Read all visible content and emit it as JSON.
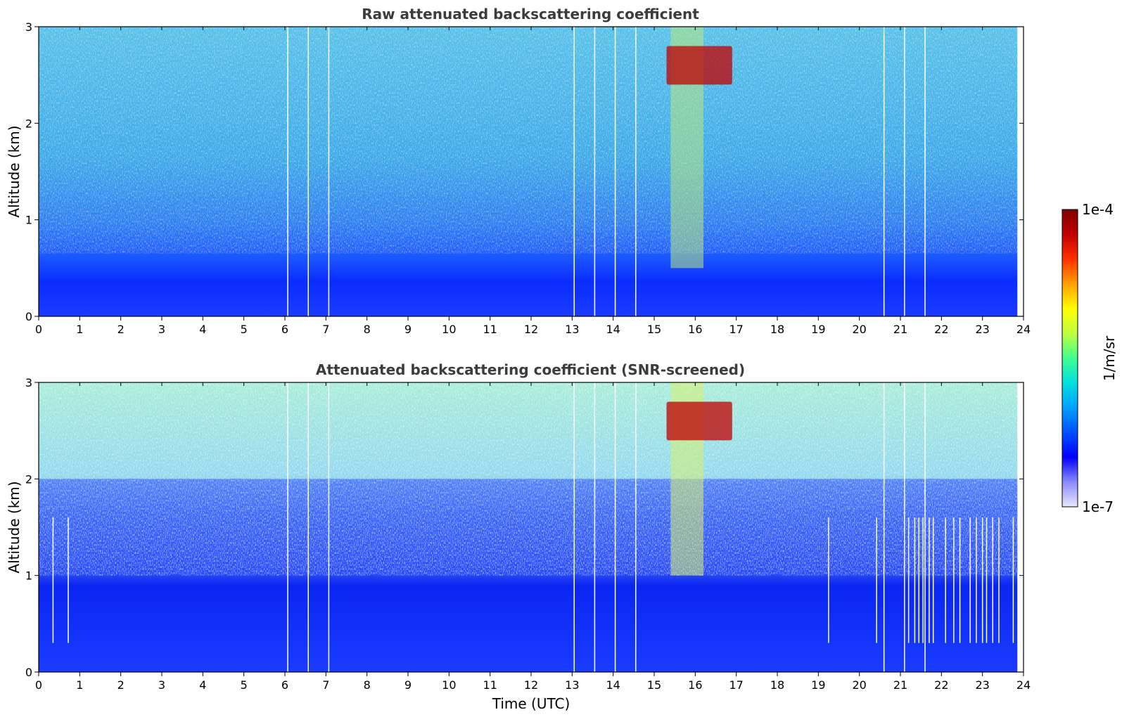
{
  "chart_data": [
    {
      "type": "heatmap",
      "title": "Raw attenuated backscattering coefficient",
      "xlabel": "",
      "ylabel": "Altitude (km)",
      "xlim": [
        0,
        24
      ],
      "ylim": [
        0,
        3
      ],
      "x_ticks": [
        "0",
        "1",
        "2",
        "3",
        "4",
        "5",
        "6",
        "7",
        "8",
        "9",
        "10",
        "11",
        "12",
        "13",
        "14",
        "15",
        "16",
        "17",
        "18",
        "19",
        "20",
        "21",
        "22",
        "23",
        "24"
      ],
      "y_ticks": [
        "0",
        "1",
        "2",
        "3"
      ],
      "data_end_time": 23.85,
      "gap_times": [
        6.07,
        6.57,
        7.07,
        13.05,
        13.55,
        14.05,
        14.55,
        20.6,
        21.1,
        21.6
      ],
      "features": {
        "boundary_layer_top_km": 0.65,
        "noise_fade_start_km": 0.4,
        "cloud": {
          "time_start": 15.3,
          "time_end": 16.9,
          "alt_bottom_km": 2.4,
          "alt_top_km": 2.8
        },
        "plume": {
          "time_start": 15.4,
          "time_end": 16.2,
          "alt_bottom_km": 0.5,
          "alt_top_km": 3.0
        }
      }
    },
    {
      "type": "heatmap",
      "title": "Attenuated backscattering coefficient (SNR-screened)",
      "xlabel": "Time (UTC)",
      "ylabel": "Altitude (km)",
      "xlim": [
        0,
        24
      ],
      "ylim": [
        0,
        3
      ],
      "x_ticks": [
        "0",
        "1",
        "2",
        "3",
        "4",
        "5",
        "6",
        "7",
        "8",
        "9",
        "10",
        "11",
        "12",
        "13",
        "14",
        "15",
        "16",
        "17",
        "18",
        "19",
        "20",
        "21",
        "22",
        "23",
        "24"
      ],
      "y_ticks": [
        "0",
        "1",
        "2",
        "3"
      ],
      "data_end_time": 23.85,
      "gap_times": [
        6.07,
        6.57,
        7.07,
        13.05,
        13.55,
        14.05,
        14.55,
        20.6,
        21.1,
        21.6
      ],
      "screened_gap_times": [
        0.35,
        0.72,
        19.25,
        20.42,
        21.2,
        21.35,
        21.45,
        21.55,
        21.7,
        21.8,
        22.1,
        22.3,
        22.45,
        22.7,
        22.85,
        23.0,
        23.1,
        23.25,
        23.4,
        23.75
      ],
      "features": {
        "boundary_layer_top_km": 1.0,
        "screened_zone_km": [
          1.0,
          2.0
        ],
        "cloud": {
          "time_start": 15.3,
          "time_end": 16.9,
          "alt_bottom_km": 2.4,
          "alt_top_km": 2.8
        },
        "plume": {
          "time_start": 15.4,
          "time_end": 16.2,
          "alt_bottom_km": 1.0,
          "alt_top_km": 3.0
        }
      }
    }
  ],
  "colorbar": {
    "label": "1/m/sr",
    "min_label": "1e-7",
    "max_label": "1e-4",
    "scale": "log",
    "colors": [
      "#e8e8fa",
      "#8a8aff",
      "#0000ff",
      "#0050ff",
      "#00a0ff",
      "#00e0e0",
      "#40ff90",
      "#c0ff40",
      "#ffff00",
      "#ffa000",
      "#ff3000",
      "#c00000",
      "#800000"
    ]
  }
}
